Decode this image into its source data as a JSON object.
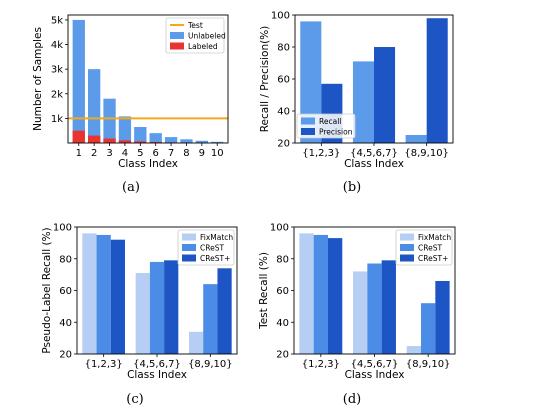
{
  "chart_data": [
    {
      "id": "a",
      "caption": "(a)",
      "type": "bar",
      "xlabel": "Class Index",
      "ylabel": "Number of Samples",
      "categories": [
        "1",
        "2",
        "3",
        "4",
        "5",
        "6",
        "7",
        "8",
        "9",
        "10"
      ],
      "ylim": [
        0,
        5200
      ],
      "yticks": [
        1000,
        2000,
        3000,
        4000,
        5000
      ],
      "ytick_labels": [
        "1k",
        "2k",
        "3k",
        "4k",
        "5k"
      ],
      "legend_position": "top-right",
      "stacked_overlay": true,
      "series": [
        {
          "name": "Unlabeled",
          "color": "#5b9bea",
          "values": [
            5000,
            3000,
            1800,
            1080,
            650,
            400,
            240,
            150,
            90,
            50
          ]
        },
        {
          "name": "Labeled",
          "color": "#e8332e",
          "values": [
            500,
            300,
            180,
            108,
            65,
            40,
            24,
            15,
            9,
            5
          ]
        }
      ],
      "reference_lines": [
        {
          "name": "Test",
          "color": "#f4a91a",
          "value": 1000
        }
      ]
    },
    {
      "id": "b",
      "caption": "(b)",
      "type": "bar",
      "xlabel": "Class Index",
      "ylabel": "Recall / Precision(%)",
      "categories": [
        "{1,2,3}",
        "{4,5,6,7}",
        "{8,9,10}"
      ],
      "ylim": [
        20,
        100
      ],
      "yticks": [
        20,
        40,
        60,
        80,
        100
      ],
      "legend_position": "bottom-left",
      "series": [
        {
          "name": "Recall",
          "color": "#5b9bea",
          "values": [
            96,
            71,
            25
          ]
        },
        {
          "name": "Precision",
          "color": "#1d56c4",
          "values": [
            57,
            80,
            98
          ]
        }
      ]
    },
    {
      "id": "c",
      "caption": "(c)",
      "type": "bar",
      "xlabel": "Class Index",
      "ylabel": "Pseudo-Label Recall (%)",
      "categories": [
        "{1,2,3}",
        "{4,5,6,7}",
        "{8,9,10}"
      ],
      "ylim": [
        20,
        100
      ],
      "yticks": [
        20,
        40,
        60,
        80,
        100
      ],
      "legend_position": "top-right",
      "series": [
        {
          "name": "FixMatch",
          "color": "#b6cdf4",
          "values": [
            96,
            71,
            34
          ]
        },
        {
          "name": "CReST",
          "color": "#4b8ce6",
          "values": [
            95,
            78,
            64
          ]
        },
        {
          "name": "CReST+",
          "color": "#1d56c4",
          "values": [
            92,
            79,
            74
          ]
        }
      ]
    },
    {
      "id": "d",
      "caption": "(d)",
      "type": "bar",
      "xlabel": "Class Index",
      "ylabel": "Test Recall (%)",
      "categories": [
        "{1,2,3}",
        "{4,5,6,7}",
        "{8,9,10}"
      ],
      "ylim": [
        20,
        100
      ],
      "yticks": [
        20,
        40,
        60,
        80,
        100
      ],
      "legend_position": "top-right",
      "series": [
        {
          "name": "FixMatch",
          "color": "#b6cdf4",
          "values": [
            96,
            72,
            25
          ]
        },
        {
          "name": "CReST",
          "color": "#4b8ce6",
          "values": [
            95,
            77,
            52
          ]
        },
        {
          "name": "CReST+",
          "color": "#1d56c4",
          "values": [
            93,
            79,
            66
          ]
        }
      ]
    }
  ]
}
